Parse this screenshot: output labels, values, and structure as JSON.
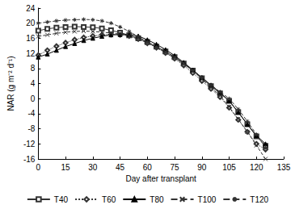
{
  "chart_data": {
    "type": "line",
    "x_label": "Day after transplant",
    "y_label": "NAR (g m⁻² d⁻¹)",
    "x": [
      0,
      5,
      10,
      15,
      20,
      25,
      30,
      35,
      40,
      45,
      50,
      55,
      60,
      65,
      70,
      75,
      80,
      85,
      90,
      95,
      100,
      105,
      110,
      115,
      120,
      125
    ],
    "xlim": [
      0,
      135
    ],
    "xticks": [
      0,
      15,
      30,
      45,
      60,
      75,
      90,
      105,
      120,
      135
    ],
    "ylim": [
      -16,
      24
    ],
    "yticks": [
      -16,
      -12,
      -8,
      -4,
      0,
      4,
      8,
      12,
      16,
      20,
      24
    ],
    "grid": false,
    "legend": "bottom",
    "series": [
      {
        "name": "T40",
        "color": "#333333",
        "marker": "square",
        "line_style": "solid",
        "values": [
          18.0,
          18.5,
          18.8,
          19.0,
          19.1,
          19.0,
          18.9,
          18.6,
          18.1,
          17.5,
          16.8,
          16.0,
          15.0,
          13.8,
          12.5,
          11.0,
          9.3,
          7.4,
          5.4,
          3.3,
          1.4,
          -0.6,
          -3.6,
          -6.8,
          -10.0,
          -12.5
        ]
      },
      {
        "name": "T60",
        "color": "#333333",
        "marker": "diamond",
        "line_style": "dotted",
        "values": [
          11.5,
          12.8,
          13.9,
          14.8,
          15.6,
          16.2,
          16.6,
          16.9,
          17.0,
          16.9,
          16.6,
          15.8,
          14.7,
          13.5,
          12.1,
          10.6,
          8.8,
          6.8,
          4.7,
          2.6,
          0.4,
          -2.4,
          -5.6,
          -8.8,
          -12.0,
          -13.5
        ]
      },
      {
        "name": "T80",
        "color": "#000000",
        "marker": "triangle",
        "line_style": "solid",
        "values": [
          11.0,
          11.8,
          12.8,
          13.8,
          14.6,
          15.4,
          16.0,
          16.5,
          16.9,
          17.0,
          17.0,
          16.6,
          15.6,
          14.4,
          13.0,
          11.4,
          9.6,
          7.6,
          5.6,
          3.6,
          1.6,
          -0.6,
          -3.6,
          -6.8,
          -9.8,
          -12.0
        ]
      },
      {
        "name": "T100",
        "color": "#333333",
        "marker": "x",
        "line_style": "dashed",
        "values": [
          16.5,
          16.9,
          17.3,
          17.6,
          17.8,
          17.9,
          17.8,
          17.6,
          17.4,
          17.1,
          16.6,
          15.8,
          14.8,
          13.6,
          12.4,
          11.0,
          9.4,
          7.4,
          5.2,
          2.9,
          0.8,
          -2.2,
          -5.4,
          -8.8,
          -12.4,
          -16.0
        ]
      },
      {
        "name": "T120",
        "color": "#333333",
        "marker": "star",
        "line_style": "dashed",
        "values": [
          20.0,
          20.3,
          20.6,
          20.8,
          20.9,
          21.0,
          20.9,
          20.6,
          20.0,
          19.0,
          17.8,
          16.4,
          15.0,
          13.6,
          12.2,
          10.8,
          9.2,
          7.4,
          5.6,
          3.6,
          1.8,
          0.0,
          -2.8,
          -6.0,
          -9.5,
          -13.0
        ]
      }
    ]
  }
}
